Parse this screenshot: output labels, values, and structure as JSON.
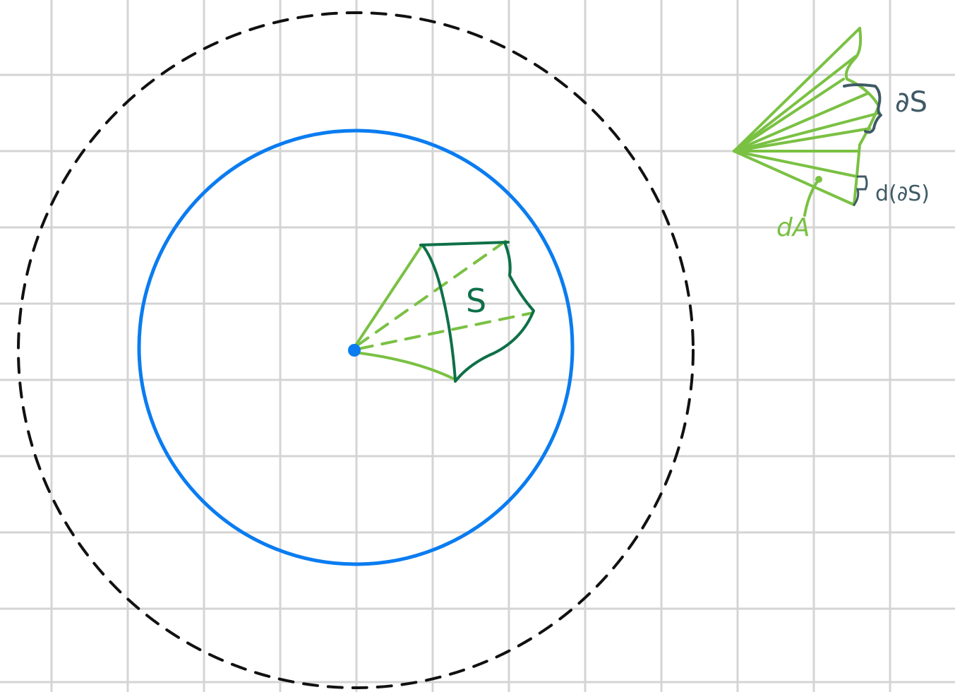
{
  "diagram": {
    "labels": {
      "surface": "S",
      "boundary": "∂S",
      "boundary_element": "d(∂S)",
      "area_element": "dA"
    },
    "colors": {
      "background": "#ffffff",
      "grid": "#d4d4d4",
      "outer_circle": "#111111",
      "inner_circle": "#0a7cf0",
      "center_point": "#0a7cf0",
      "cone_light_green": "#7ac143",
      "surface_dark_green": "#0e7048",
      "boundary_slate": "#3f5a66"
    },
    "elements": {
      "outer_circle_style": "dashed",
      "inner_circle_style": "solid",
      "grid": true
    }
  }
}
